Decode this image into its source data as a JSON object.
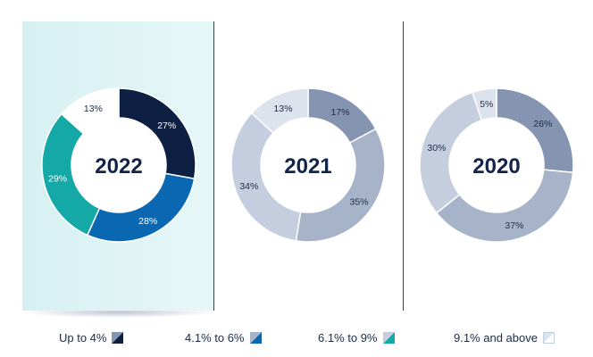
{
  "colors": {
    "navy": "#0e1f44",
    "blue": "#0a67b1",
    "teal": "#14a8a6",
    "white": "#ffffff",
    "slate_dark": "#8595b1",
    "slate_mid": "#a7b3c8",
    "slate_light": "#c5cede",
    "slate_pale": "#dde3ec",
    "highlight_bg": "#e1f5f6",
    "divider": "#26406a",
    "text_dark": "#13244a"
  },
  "chart_data": [
    {
      "type": "pie",
      "title": "2022",
      "highlighted": true,
      "categories": [
        "Up to 4%",
        "4.1% to 6%",
        "6.1% to 9%",
        "9.1% and above"
      ],
      "values": [
        27,
        28,
        29,
        13
      ],
      "labels": [
        "27%",
        "28%",
        "29%",
        "13%"
      ],
      "colors": [
        "#0e1f44",
        "#0a67b1",
        "#14a8a6",
        "#ffffff"
      ],
      "label_colors": [
        "#ffffff",
        "#ffffff",
        "#ffffff",
        "#1d2b47"
      ]
    },
    {
      "type": "pie",
      "title": "2021",
      "highlighted": false,
      "categories": [
        "Up to 4%",
        "4.1% to 6%",
        "6.1% to 9%",
        "9.1% and above"
      ],
      "values": [
        17,
        35,
        34,
        13
      ],
      "labels": [
        "17%",
        "35%",
        "34%",
        "13%"
      ],
      "colors": [
        "#8595b1",
        "#a7b3c8",
        "#c5cede",
        "#dde3ec"
      ],
      "label_colors": [
        "#1d2b47",
        "#1d2b47",
        "#1d2b47",
        "#1d2b47"
      ]
    },
    {
      "type": "pie",
      "title": "2020",
      "highlighted": false,
      "categories": [
        "Up to 4%",
        "4.1% to 6%",
        "6.1% to 9%",
        "9.1% and above"
      ],
      "values": [
        26,
        37,
        30,
        5
      ],
      "labels": [
        "26%",
        "37%",
        "30%",
        "5%"
      ],
      "colors": [
        "#8595b1",
        "#a7b3c8",
        "#c5cede",
        "#dde3ec"
      ],
      "label_colors": [
        "#1d2b47",
        "#1d2b47",
        "#1d2b47",
        "#1d2b47"
      ]
    }
  ],
  "legend": [
    {
      "label": "Up to 4%",
      "colors": [
        "#0e1f44",
        "#8595b1"
      ]
    },
    {
      "label": "4.1% to 6%",
      "colors": [
        "#0a67b1",
        "#a7b3c8"
      ]
    },
    {
      "label": "6.1% to 9%",
      "colors": [
        "#14a8a6",
        "#c5cede"
      ]
    },
    {
      "label": "9.1% and above",
      "colors": [
        "#ffffff",
        "#dde3ec"
      ]
    }
  ]
}
